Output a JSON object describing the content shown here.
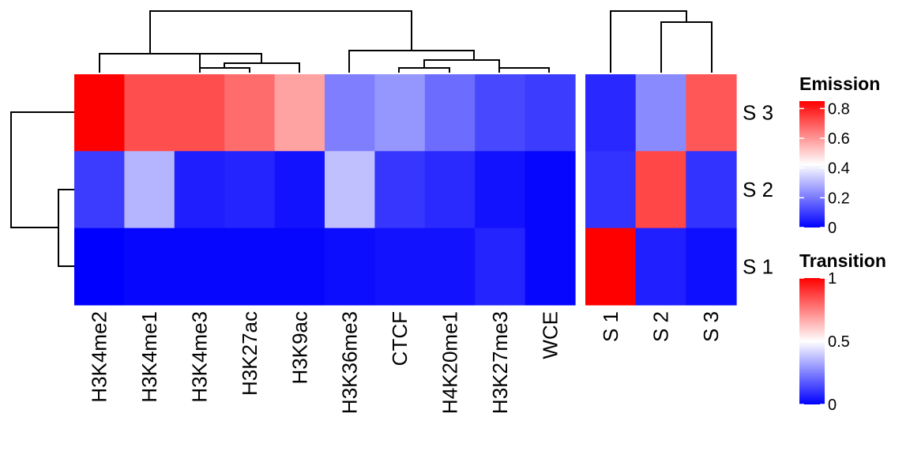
{
  "chart_data": [
    {
      "type": "heatmap",
      "name": "emission",
      "columns": [
        "H3K4me2",
        "H3K4me1",
        "H3K4me3",
        "H3K27ac",
        "H3K9ac",
        "H3K36me3",
        "CTCF",
        "H4K20me1",
        "H3K27me3",
        "WCE"
      ],
      "rows": [
        "S 3",
        "S 2",
        "S 1"
      ],
      "values": [
        [
          0.85,
          0.72,
          0.72,
          0.67,
          0.58,
          0.21,
          0.25,
          0.18,
          0.12,
          0.1
        ],
        [
          0.1,
          0.3,
          0.05,
          0.06,
          0.03,
          0.32,
          0.09,
          0.07,
          0.03,
          0.01
        ],
        [
          0.0,
          0.01,
          0.01,
          0.01,
          0.01,
          0.02,
          0.03,
          0.03,
          0.06,
          0.01
        ]
      ]
    },
    {
      "type": "heatmap",
      "name": "transition",
      "columns": [
        "S 1",
        "S 2",
        "S 3"
      ],
      "rows": [
        "S 3",
        "S 2",
        "S 1"
      ],
      "values": [
        [
          0.08,
          0.27,
          0.83
        ],
        [
          0.1,
          0.86,
          0.1
        ],
        [
          1.0,
          0.06,
          0.03
        ]
      ]
    }
  ],
  "legends": [
    {
      "title": "Emission",
      "ticks": [
        "0.8",
        "0.6",
        "0.4",
        "0.2",
        "0"
      ],
      "tick_values": [
        0.8,
        0.6,
        0.4,
        0.2,
        0
      ],
      "range": [
        0,
        0.85
      ]
    },
    {
      "title": "Transition",
      "ticks": [
        "1",
        "0.5",
        "0"
      ],
      "tick_values": [
        1,
        0.5,
        0
      ],
      "range": [
        0,
        1
      ]
    }
  ],
  "colors": {
    "low": "#0000ff",
    "mid": "#ffffff",
    "high": "#ff0000"
  }
}
